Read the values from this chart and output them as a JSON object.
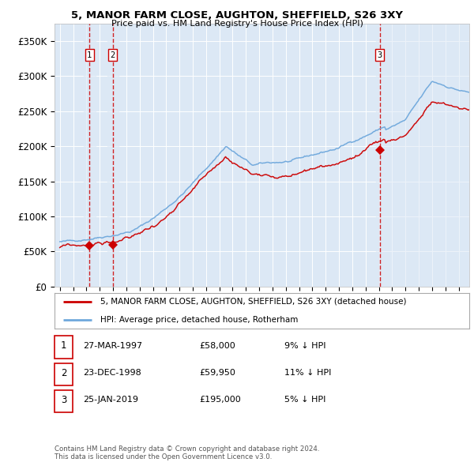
{
  "title": "5, MANOR FARM CLOSE, AUGHTON, SHEFFIELD, S26 3XY",
  "subtitle": "Price paid vs. HM Land Registry's House Price Index (HPI)",
  "ylim": [
    0,
    375000
  ],
  "yticks": [
    0,
    50000,
    100000,
    150000,
    200000,
    250000,
    300000,
    350000
  ],
  "ytick_labels": [
    "£0",
    "£50K",
    "£100K",
    "£150K",
    "£200K",
    "£250K",
    "£300K",
    "£350K"
  ],
  "xlim_start": 1994.6,
  "xlim_end": 2025.8,
  "sale_dates": [
    1997.23,
    1998.98,
    2019.07
  ],
  "sale_prices": [
    58000,
    59950,
    195000
  ],
  "sale_labels": [
    "1",
    "2",
    "3"
  ],
  "hpi_color": "#6fa8dc",
  "price_color": "#cc0000",
  "dashed_vline_color": "#cc0000",
  "shade_color_left": "#dce8f5",
  "shade_color_right": "#dce8f5",
  "background_color": "#dce8f5",
  "grid_color": "#ffffff",
  "legend_label_price": "5, MANOR FARM CLOSE, AUGHTON, SHEFFIELD, S26 3XY (detached house)",
  "legend_label_hpi": "HPI: Average price, detached house, Rotherham",
  "table_entries": [
    {
      "label": "1",
      "date": "27-MAR-1997",
      "price": "£58,000",
      "hpi": "9% ↓ HPI"
    },
    {
      "label": "2",
      "date": "23-DEC-1998",
      "price": "£59,950",
      "hpi": "11% ↓ HPI"
    },
    {
      "label": "3",
      "date": "25-JAN-2019",
      "price": "£195,000",
      "hpi": "5% ↓ HPI"
    }
  ],
  "footer": "Contains HM Land Registry data © Crown copyright and database right 2024.\nThis data is licensed under the Open Government Licence v3.0."
}
